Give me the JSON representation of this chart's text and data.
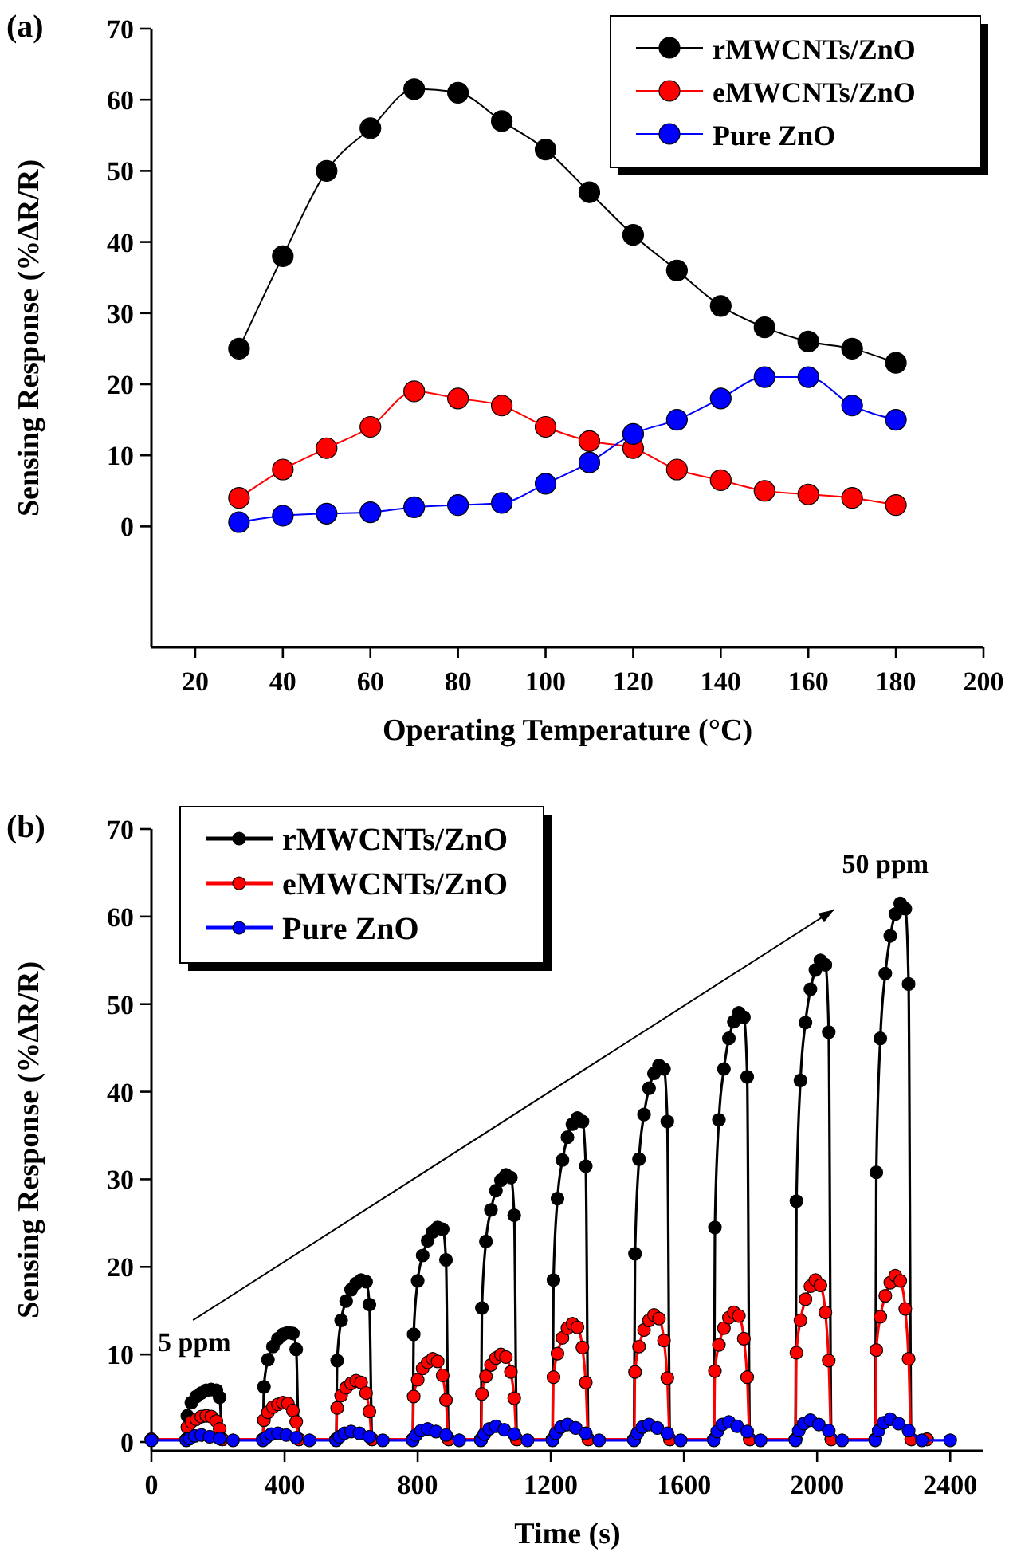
{
  "chart_data": [
    {
      "type": "line",
      "title": "(a)",
      "xlabel": "Operating Temperature (°C)",
      "ylabel": "Sensing Response (%ΔR/R)",
      "x": [
        30,
        40,
        50,
        60,
        70,
        80,
        90,
        100,
        110,
        120,
        130,
        140,
        150,
        160,
        170,
        180
      ],
      "xlim": [
        10,
        200
      ],
      "xticks": [
        20,
        40,
        60,
        80,
        100,
        120,
        140,
        160,
        180,
        200
      ],
      "ylim": [
        -17,
        70
      ],
      "yticks": [
        0,
        10,
        20,
        30,
        40,
        50,
        60,
        70
      ],
      "marker": "circle",
      "legend": "top right",
      "series": [
        {
          "name": "rMWCNTs/ZnO",
          "color": "#000000",
          "values": [
            25,
            38,
            50,
            56,
            61.5,
            61,
            57,
            53,
            47,
            41,
            36,
            31,
            28,
            26,
            25,
            23
          ]
        },
        {
          "name": "eMWCNTs/ZnO",
          "color": "#ff0000",
          "values": [
            4,
            8,
            11,
            14,
            19,
            18,
            17,
            14,
            12,
            11,
            8,
            6.5,
            5,
            4.5,
            4,
            3
          ]
        },
        {
          "name": "Pure ZnO",
          "color": "#0000ff",
          "values": [
            0.6,
            1.5,
            1.8,
            2,
            2.7,
            3,
            3.3,
            6,
            9,
            13,
            15,
            18,
            21,
            21,
            17,
            15
          ]
        }
      ]
    },
    {
      "type": "line",
      "title": "(b)",
      "xlabel": "Time (s)",
      "ylabel": "Sensing Response (%ΔR/R)",
      "xlim": [
        0,
        2500
      ],
      "xticks": [
        0,
        400,
        800,
        1200,
        1600,
        2000,
        2400
      ],
      "ylim": [
        -1,
        70
      ],
      "yticks": [
        0,
        10,
        20,
        30,
        40,
        50,
        60,
        70
      ],
      "marker": "circle",
      "legend": "top left",
      "annotations": [
        "5 ppm",
        "50 ppm"
      ],
      "x": [
        0,
        105,
        108,
        120,
        135,
        150,
        165,
        180,
        195,
        205,
        213,
        335,
        338,
        350,
        365,
        380,
        395,
        410,
        425,
        435,
        443,
        555,
        558,
        570,
        585,
        600,
        615,
        630,
        645,
        655,
        663,
        785,
        788,
        800,
        815,
        830,
        845,
        860,
        875,
        885,
        893,
        990,
        993,
        1005,
        1020,
        1035,
        1050,
        1065,
        1080,
        1090,
        1098,
        1205,
        1208,
        1220,
        1235,
        1250,
        1265,
        1280,
        1295,
        1305,
        1313,
        1450,
        1453,
        1465,
        1480,
        1495,
        1510,
        1525,
        1540,
        1550,
        1558,
        1690,
        1693,
        1705,
        1720,
        1735,
        1750,
        1765,
        1780,
        1790,
        1798,
        1935,
        1938,
        1950,
        1965,
        1980,
        1995,
        2010,
        2025,
        2035,
        2043,
        2175,
        2178,
        2190,
        2205,
        2220,
        2235,
        2250,
        2265,
        2275,
        2283,
        2330
      ],
      "series": [
        {
          "name": "rMWCNTs/ZnO",
          "color": "#000000",
          "values": [
            0.3,
            0.3,
            3,
            4.5,
            5.2,
            5.6,
            5.9,
            6,
            5.9,
            5.1,
            0.3,
            0.3,
            6.3,
            9.4,
            10.9,
            11.8,
            12.3,
            12.5,
            12.4,
            10.6,
            0.3,
            0.3,
            9.3,
            13.9,
            16.1,
            17.4,
            18.1,
            18.5,
            18.3,
            15.7,
            0.3,
            0.3,
            12.3,
            18.4,
            21.3,
            23,
            24,
            24.5,
            24.3,
            20.8,
            0.3,
            0.3,
            15.3,
            22.9,
            26.5,
            28.7,
            29.9,
            30.5,
            30.2,
            25.9,
            0.3,
            0.3,
            18.5,
            27.8,
            32.2,
            34.8,
            36.3,
            37,
            36.6,
            31.5,
            0.3,
            0.3,
            21.5,
            32.3,
            37.4,
            40.4,
            42.1,
            43,
            42.6,
            36.6,
            0.3,
            0.3,
            24.5,
            36.8,
            42.6,
            46.1,
            48,
            49,
            48.5,
            41.7,
            0.3,
            0.3,
            27.5,
            41.3,
            47.9,
            51.7,
            53.9,
            55,
            54.5,
            46.8,
            0.3,
            0.3,
            30.8,
            46.1,
            53.5,
            57.8,
            60.3,
            61.5,
            60.9,
            52.3,
            0.3,
            0.3
          ]
        },
        {
          "name": "eMWCNTs/ZnO",
          "color": "#ff0000",
          "values": [
            0.3,
            0.3,
            1.7,
            2.3,
            2.6,
            2.9,
            3,
            2.9,
            2.4,
            1.5,
            0.3,
            0.3,
            2.5,
            3.4,
            4,
            4.3,
            4.5,
            4.4,
            3.6,
            2.3,
            0.3,
            0.3,
            3.9,
            5.3,
            6.2,
            6.7,
            7,
            6.8,
            5.6,
            3.5,
            0.3,
            0.3,
            5.2,
            7.1,
            8.4,
            9.1,
            9.5,
            9.2,
            7.6,
            4.8,
            0.3,
            0.3,
            5.5,
            7.5,
            8.8,
            9.6,
            10,
            9.7,
            8,
            5,
            0.3,
            0.3,
            7.4,
            10.1,
            11.9,
            13,
            13.5,
            13.1,
            10.8,
            6.8,
            0.3,
            0.3,
            8,
            10.9,
            12.8,
            13.9,
            14.5,
            14.1,
            11.6,
            7.3,
            0.3,
            0.3,
            8.1,
            11.1,
            13,
            14.2,
            14.8,
            14.4,
            11.8,
            7.4,
            0.3,
            0.3,
            10.2,
            13.9,
            16.3,
            17.8,
            18.5,
            17.9,
            14.8,
            9.3,
            0.3,
            0.3,
            10.5,
            14.3,
            16.7,
            18.2,
            19,
            18.4,
            15.2,
            9.5,
            0.3,
            0.3
          ]
        },
        {
          "name": "Pure ZnO",
          "color": "#0000ff",
          "x": [
            0,
            105,
            115,
            130,
            150,
            175,
            205,
            245,
            335,
            345,
            360,
            380,
            405,
            435,
            475,
            555,
            565,
            580,
            600,
            625,
            655,
            695,
            785,
            795,
            810,
            830,
            855,
            885,
            925,
            990,
            1000,
            1015,
            1035,
            1060,
            1090,
            1130,
            1205,
            1215,
            1230,
            1250,
            1275,
            1305,
            1345,
            1450,
            1460,
            1475,
            1495,
            1520,
            1550,
            1590,
            1690,
            1700,
            1715,
            1735,
            1760,
            1790,
            1830,
            1935,
            1945,
            1960,
            1980,
            2005,
            2035,
            2075,
            2175,
            2185,
            2200,
            2220,
            2245,
            2275,
            2315,
            2400
          ],
          "values": [
            0.2,
            0.2,
            0.4,
            0.7,
            0.8,
            0.6,
            0.4,
            0.2,
            0.2,
            0.5,
            0.9,
            1,
            0.8,
            0.5,
            0.2,
            0.2,
            0.6,
            1,
            1.2,
            1,
            0.6,
            0.2,
            0.2,
            0.8,
            1.3,
            1.5,
            1.2,
            0.8,
            0.2,
            0.2,
            0.9,
            1.5,
            1.8,
            1.4,
            0.9,
            0.2,
            0.2,
            1,
            1.7,
            2,
            1.6,
            1,
            0.2,
            0.2,
            1,
            1.7,
            2,
            1.6,
            1,
            0.2,
            0.2,
            1.2,
            2,
            2.3,
            1.8,
            1.2,
            0.2,
            0.2,
            1.3,
            2.1,
            2.5,
            2,
            1.3,
            0.2,
            0.2,
            1.3,
            2.2,
            2.6,
            2.1,
            1.3,
            0.2,
            0.2
          ]
        }
      ]
    }
  ]
}
